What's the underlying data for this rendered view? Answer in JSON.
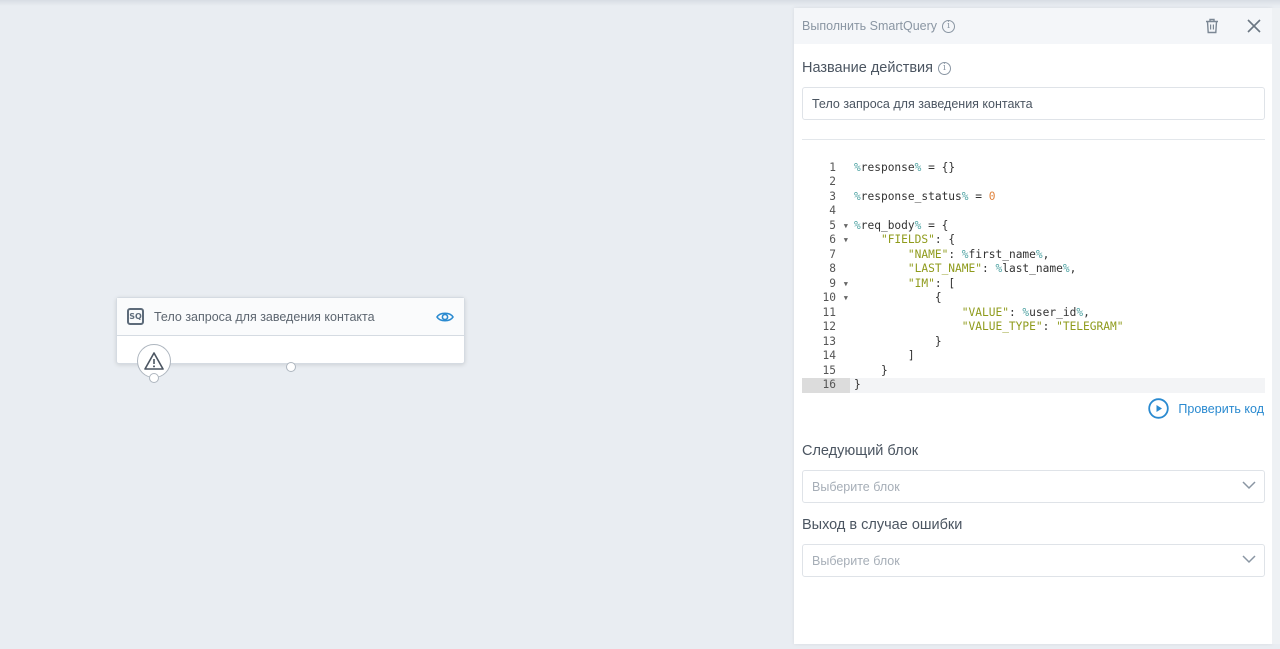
{
  "canvas": {
    "node": {
      "icon": "sq-icon",
      "badge": "SQ",
      "title": "Тело запроса для заведения контакта"
    }
  },
  "panel": {
    "title": "Выполнить SmartQuery",
    "action_name_label": "Название действия",
    "action_name_value": "Тело запроса для заведения контакта",
    "code_lines": [
      [
        [
          "pct",
          "%"
        ],
        [
          "var",
          "response"
        ],
        [
          "pct",
          "%"
        ],
        [
          "p",
          " = {}"
        ]
      ],
      [],
      [
        [
          "pct",
          "%"
        ],
        [
          "var",
          "response_status"
        ],
        [
          "pct",
          "%"
        ],
        [
          "p",
          " = "
        ],
        [
          "num",
          "0"
        ]
      ],
      [],
      [
        [
          "pct",
          "%"
        ],
        [
          "var",
          "req_body"
        ],
        [
          "pct",
          "%"
        ],
        [
          "p",
          " = {"
        ]
      ],
      [
        [
          "p",
          "    "
        ],
        [
          "str",
          "\"FIELDS\""
        ],
        [
          "p",
          ": {"
        ]
      ],
      [
        [
          "p",
          "        "
        ],
        [
          "str",
          "\"NAME\""
        ],
        [
          "p",
          ": "
        ],
        [
          "pct",
          "%"
        ],
        [
          "var",
          "first_name"
        ],
        [
          "pct",
          "%"
        ],
        [
          "p",
          ","
        ]
      ],
      [
        [
          "p",
          "        "
        ],
        [
          "str",
          "\"LAST_NAME\""
        ],
        [
          "p",
          ": "
        ],
        [
          "pct",
          "%"
        ],
        [
          "var",
          "last_name"
        ],
        [
          "pct",
          "%"
        ],
        [
          "p",
          ","
        ]
      ],
      [
        [
          "p",
          "        "
        ],
        [
          "str",
          "\"IM\""
        ],
        [
          "p",
          ": ["
        ]
      ],
      [
        [
          "p",
          "            {"
        ]
      ],
      [
        [
          "p",
          "                "
        ],
        [
          "str",
          "\"VALUE\""
        ],
        [
          "p",
          ": "
        ],
        [
          "pct",
          "%"
        ],
        [
          "var",
          "user_id"
        ],
        [
          "pct",
          "%"
        ],
        [
          "p",
          ","
        ]
      ],
      [
        [
          "p",
          "                "
        ],
        [
          "str",
          "\"VALUE_TYPE\""
        ],
        [
          "p",
          ": "
        ],
        [
          "str",
          "\"TELEGRAM\""
        ]
      ],
      [
        [
          "p",
          "            }"
        ]
      ],
      [
        [
          "p",
          "        ]"
        ]
      ],
      [
        [
          "p",
          "    }"
        ]
      ],
      [
        [
          "p",
          "}"
        ]
      ]
    ],
    "foldable_lines": [
      5,
      6,
      9,
      10
    ],
    "active_line": 16,
    "check_code_label": "Проверить код",
    "next_block_label": "Следующий блок",
    "next_block_placeholder": "Выберите блок",
    "error_exit_label": "Выход в случае ошибки",
    "error_exit_placeholder": "Выберите блок"
  },
  "colors": {
    "accent": "#2a8ad0",
    "string": "#8f9b1c",
    "number": "#e0823b",
    "variable_marker": "#4fa3a3"
  }
}
